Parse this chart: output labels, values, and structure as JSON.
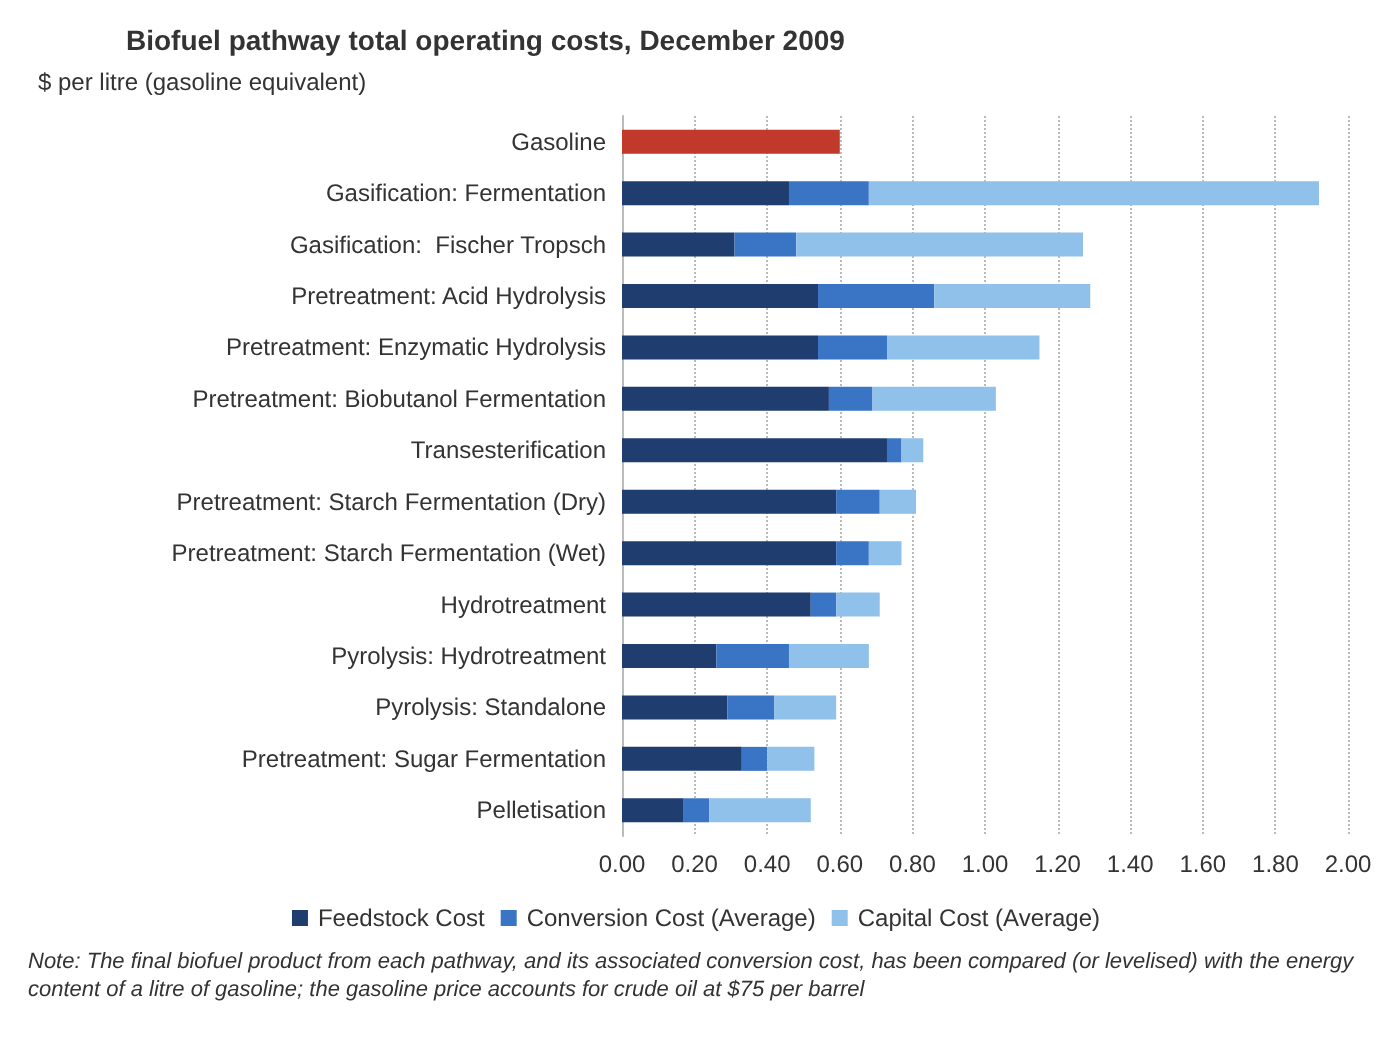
{
  "chart_data": {
    "type": "bar",
    "orientation": "horizontal",
    "stacked": true,
    "title": "Biofuel pathway total operating costs, December 2009",
    "subtitle": "$ per litre (gasoline equivalent)",
    "categories": [
      "Gasoline",
      "Gasification: Fermentation",
      "Gasification:  Fischer Tropsch",
      "Pretreatment: Acid Hydrolysis",
      "Pretreatment: Enzymatic Hydrolysis",
      "Pretreatment: Biobutanol Fermentation",
      "Transesterification",
      "Pretreatment: Starch Fermentation (Dry)",
      "Pretreatment: Starch Fermentation (Wet)",
      "Hydrotreatment",
      "Pyrolysis: Hydrotreatment",
      "Pyrolysis: Standalone",
      "Pretreatment: Sugar Fermentation",
      "Pelletisation"
    ],
    "series": [
      {
        "color": "#c0392b",
        "values": [
          0.6,
          null,
          null,
          null,
          null,
          null,
          null,
          null,
          null,
          null,
          null,
          null,
          null,
          null
        ]
      },
      {
        "name": "Feedstock Cost",
        "color": "#1f3d6e",
        "values": [
          null,
          0.46,
          0.31,
          0.54,
          0.54,
          0.57,
          0.73,
          0.59,
          0.59,
          0.52,
          0.26,
          0.29,
          0.33,
          0.17
        ]
      },
      {
        "name": "Conversion Cost (Average)",
        "color": "#3a74c4",
        "values": [
          null,
          0.22,
          0.17,
          0.32,
          0.19,
          0.12,
          0.04,
          0.12,
          0.09,
          0.07,
          0.2,
          0.13,
          0.07,
          0.07
        ]
      },
      {
        "name": "Capital Cost (Average)",
        "color": "#8fc1ea",
        "values": [
          null,
          1.24,
          0.79,
          0.43,
          0.42,
          0.34,
          0.06,
          0.1,
          0.09,
          0.12,
          0.22,
          0.17,
          0.13,
          0.28
        ]
      }
    ],
    "xlim": [
      0,
      2
    ],
    "xticks": [
      {
        "value": 0,
        "label": "0.00"
      },
      {
        "value": 0.2,
        "label": "0.20"
      },
      {
        "value": 0.4,
        "label": "0.40"
      },
      {
        "value": 0.6,
        "label": "0.60"
      },
      {
        "value": 0.8,
        "label": "0.80"
      },
      {
        "value": 1,
        "label": "1.00"
      },
      {
        "value": 1.2,
        "label": "1.20"
      },
      {
        "value": 1.4,
        "label": "1.40"
      },
      {
        "value": 1.6,
        "label": "1.60"
      },
      {
        "value": 1.8,
        "label": "1.80"
      },
      {
        "value": 2,
        "label": "2.00"
      }
    ],
    "grid": "x",
    "legend": "bottom",
    "annotations": [
      "Note: The final biofuel product from each pathway, and its associated conversion cost, has been compared (or levelised) with the energy content of a litre of gasoline; the gasoline price accounts for crude oil at $75 per barrel"
    ]
  }
}
